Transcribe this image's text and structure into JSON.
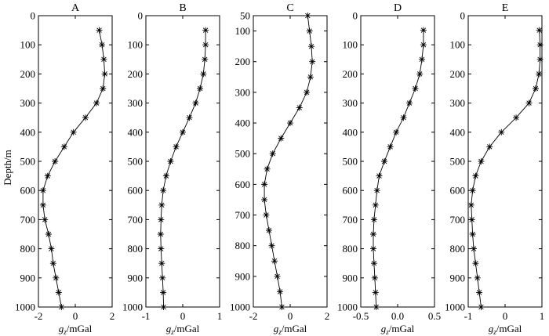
{
  "figure": {
    "ylabel": "Depth/m",
    "xlabel_main": "g",
    "xlabel_sub": "z",
    "xlabel_unit": "/mGal"
  },
  "chart_data": [
    {
      "type": "line",
      "title": "A",
      "xlabel": "gz/mGal",
      "ylabel": "Depth/m",
      "xlim": [
        -2,
        2
      ],
      "xticks": [
        -2,
        0,
        2
      ],
      "ylim": [
        0,
        1000
      ],
      "yticks": [
        0,
        100,
        200,
        300,
        400,
        500,
        600,
        700,
        800,
        900,
        1000
      ],
      "y_inverted": true,
      "marker": "asterisk",
      "x": [
        1.3,
        1.45,
        1.55,
        1.6,
        1.5,
        1.15,
        0.55,
        -0.1,
        -0.6,
        -1.1,
        -1.5,
        -1.75,
        -1.75,
        -1.65,
        -1.45,
        -1.3,
        -1.2,
        -1.05,
        -0.9,
        -0.75
      ],
      "y": [
        50,
        100,
        150,
        200,
        250,
        300,
        350,
        400,
        450,
        500,
        550,
        600,
        650,
        700,
        750,
        800,
        850,
        900,
        950,
        1000
      ]
    },
    {
      "type": "line",
      "title": "B",
      "xlabel": "gz/mGal",
      "ylabel": "",
      "xlim": [
        -1,
        1
      ],
      "xticks": [
        -1,
        0,
        1
      ],
      "ylim": [
        0,
        1000
      ],
      "yticks": [
        0,
        100,
        200,
        300,
        400,
        500,
        600,
        700,
        800,
        900,
        1000
      ],
      "y_inverted": true,
      "marker": "asterisk",
      "x": [
        0.62,
        0.62,
        0.6,
        0.56,
        0.47,
        0.35,
        0.18,
        0.0,
        -0.18,
        -0.33,
        -0.45,
        -0.53,
        -0.57,
        -0.59,
        -0.6,
        -0.59,
        -0.57,
        -0.55,
        -0.53,
        -0.52
      ],
      "y": [
        50,
        100,
        150,
        200,
        250,
        300,
        350,
        400,
        450,
        500,
        550,
        600,
        650,
        700,
        750,
        800,
        850,
        900,
        950,
        1000
      ]
    },
    {
      "type": "line",
      "title": "C",
      "xlabel": "gz/mGal",
      "ylabel": "",
      "xlim": [
        -2,
        2
      ],
      "xticks": [
        -2,
        0,
        2
      ],
      "ylim": [
        50,
        1000
      ],
      "yticks": [
        50,
        100,
        200,
        300,
        400,
        500,
        600,
        700,
        800,
        900,
        1000
      ],
      "y_inverted": true,
      "marker": "asterisk",
      "x": [
        0.95,
        1.05,
        1.15,
        1.2,
        1.1,
        0.9,
        0.5,
        0.0,
        -0.5,
        -0.95,
        -1.25,
        -1.4,
        -1.4,
        -1.3,
        -1.15,
        -1.0,
        -0.85,
        -0.7,
        -0.55,
        -0.45
      ],
      "y": [
        50,
        100,
        150,
        200,
        250,
        300,
        350,
        400,
        450,
        500,
        550,
        600,
        650,
        700,
        750,
        800,
        850,
        900,
        950,
        1000
      ]
    },
    {
      "type": "line",
      "title": "D",
      "xlabel": "gz/mGal",
      "ylabel": "",
      "xlim": [
        -0.5,
        0.5
      ],
      "xticks": [
        -0.5,
        0.0,
        0.5
      ],
      "ylim": [
        0,
        1000
      ],
      "yticks": [
        0,
        100,
        200,
        300,
        400,
        500,
        600,
        700,
        800,
        900,
        1000
      ],
      "y_inverted": true,
      "marker": "asterisk",
      "x": [
        0.35,
        0.35,
        0.33,
        0.3,
        0.24,
        0.16,
        0.08,
        -0.02,
        -0.1,
        -0.18,
        -0.25,
        -0.28,
        -0.3,
        -0.32,
        -0.33,
        -0.33,
        -0.32,
        -0.31,
        -0.3,
        -0.29
      ],
      "y": [
        50,
        100,
        150,
        200,
        250,
        300,
        350,
        400,
        450,
        500,
        550,
        600,
        650,
        700,
        750,
        800,
        850,
        900,
        950,
        1000
      ]
    },
    {
      "type": "line",
      "title": "E",
      "xlabel": "gz/mGal",
      "ylabel": "",
      "xlim": [
        -1,
        1
      ],
      "xticks": [
        -1,
        0,
        1
      ],
      "ylim": [
        0,
        1000
      ],
      "yticks": [
        0,
        100,
        200,
        300,
        400,
        500,
        600,
        700,
        800,
        900,
        1000
      ],
      "y_inverted": true,
      "marker": "asterisk",
      "x": [
        0.93,
        0.95,
        0.95,
        0.92,
        0.83,
        0.65,
        0.3,
        -0.1,
        -0.42,
        -0.65,
        -0.8,
        -0.88,
        -0.92,
        -0.9,
        -0.88,
        -0.85,
        -0.8,
        -0.75,
        -0.7,
        -0.65
      ],
      "y": [
        50,
        100,
        150,
        200,
        250,
        300,
        350,
        400,
        450,
        500,
        550,
        600,
        650,
        700,
        750,
        800,
        850,
        900,
        950,
        1000
      ]
    }
  ]
}
